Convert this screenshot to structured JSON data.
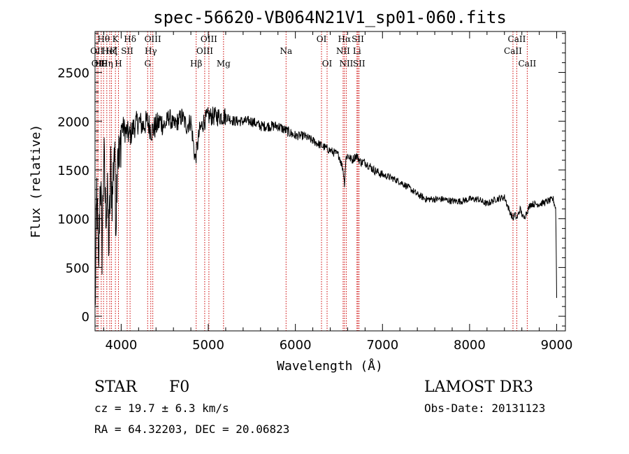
{
  "chart_data": {
    "type": "line",
    "title": "spec-56620-VB064N21V1_sp01-060.fits",
    "xlabel": "Wavelength (Å)",
    "ylabel": "Flux (relative)",
    "xlim": [
      3700,
      9100
    ],
    "ylim": [
      -150,
      2920
    ],
    "xticks": [
      4000,
      5000,
      6000,
      7000,
      8000,
      9000
    ],
    "yticks": [
      0,
      500,
      1000,
      1500,
      2000,
      2500
    ],
    "series": [
      {
        "name": "flux",
        "x": [
          3700,
          3720,
          3740,
          3760,
          3780,
          3800,
          3820,
          3840,
          3860,
          3880,
          3900,
          3920,
          3940,
          3960,
          3980,
          4000,
          4050,
          4100,
          4150,
          4200,
          4250,
          4300,
          4350,
          4400,
          4450,
          4500,
          4550,
          4600,
          4650,
          4700,
          4750,
          4800,
          4850,
          4900,
          4950,
          5000,
          5100,
          5200,
          5300,
          5400,
          5500,
          5600,
          5700,
          5800,
          5900,
          6000,
          6100,
          6200,
          6300,
          6400,
          6500,
          6550,
          6563,
          6580,
          6600,
          6650,
          6700,
          6750,
          6800,
          6900,
          7000,
          7100,
          7200,
          7300,
          7400,
          7500,
          7600,
          7700,
          7800,
          7900,
          8000,
          8100,
          8200,
          8300,
          8400,
          8450,
          8498,
          8520,
          8542,
          8580,
          8620,
          8662,
          8700,
          8800,
          8900,
          8960,
          8990,
          9000
        ],
        "y": [
          0,
          1300,
          400,
          1500,
          700,
          1650,
          1100,
          1250,
          700,
          1500,
          1200,
          1800,
          1000,
          1850,
          1500,
          1950,
          1900,
          1850,
          1950,
          2000,
          1950,
          2000,
          1900,
          1950,
          2000,
          1950,
          2050,
          1950,
          2000,
          2050,
          1950,
          2000,
          1600,
          1900,
          2000,
          2050,
          2050,
          2050,
          2000,
          2000,
          2000,
          1950,
          1950,
          1950,
          1900,
          1850,
          1850,
          1800,
          1750,
          1700,
          1650,
          1500,
          1350,
          1620,
          1650,
          1600,
          1650,
          1580,
          1580,
          1500,
          1450,
          1420,
          1380,
          1320,
          1250,
          1200,
          1200,
          1200,
          1180,
          1180,
          1200,
          1200,
          1150,
          1200,
          1220,
          1100,
          1000,
          1050,
          1000,
          1100,
          1000,
          1080,
          1150,
          1150,
          1180,
          1200,
          1100,
          200
        ]
      }
    ],
    "lines": [
      {
        "w": 3722,
        "label": "OII",
        "row": 1
      },
      {
        "w": 3735,
        "label": "OII",
        "row": 2
      },
      {
        "w": 3771,
        "label": "H9",
        "row": 2
      },
      {
        "w": 3798,
        "label": "Hθ",
        "row": 0
      },
      {
        "w": 3835,
        "label": "Hη",
        "row": 2
      },
      {
        "w": 3869,
        "label": "HeI",
        "row": 1
      },
      {
        "w": 3889,
        "label": "Hζ",
        "row": 1
      },
      {
        "w": 3934,
        "label": "K",
        "row": 0
      },
      {
        "w": 3969,
        "label": "H",
        "row": 2
      },
      {
        "w": 4069,
        "label": "SII",
        "row": 1
      },
      {
        "w": 4102,
        "label": "Hδ",
        "row": 0
      },
      {
        "w": 4304,
        "label": "G",
        "row": 2
      },
      {
        "w": 4340,
        "label": "Hγ",
        "row": 1
      },
      {
        "w": 4363,
        "label": "OIII",
        "row": 0
      },
      {
        "w": 4861,
        "label": "Hβ",
        "row": 2
      },
      {
        "w": 4959,
        "label": "OIII",
        "row": 1
      },
      {
        "w": 5007,
        "label": "OIII",
        "row": 0
      },
      {
        "w": 5175,
        "label": "Mg",
        "row": 2
      },
      {
        "w": 5893,
        "label": "Na",
        "row": 1
      },
      {
        "w": 6300,
        "label": "OI",
        "row": 0
      },
      {
        "w": 6364,
        "label": "OI",
        "row": 2
      },
      {
        "w": 6548,
        "label": "NII",
        "row": 1
      },
      {
        "w": 6563,
        "label": "Hα",
        "row": 0
      },
      {
        "w": 6584,
        "label": "NII",
        "row": 2
      },
      {
        "w": 6707,
        "label": "Li",
        "row": 1
      },
      {
        "w": 6717,
        "label": "SII",
        "row": 0
      },
      {
        "w": 6731,
        "label": "SII",
        "row": 2
      },
      {
        "w": 8498,
        "label": "CaII",
        "row": 1
      },
      {
        "w": 8542,
        "label": "CaII",
        "row": 0
      },
      {
        "w": 8662,
        "label": "CaII",
        "row": 2
      }
    ]
  },
  "info": {
    "class": "STAR",
    "subclass": "F0",
    "survey": "LAMOST DR3",
    "cz": "cz = 19.7 ± 6.3 km/s",
    "obsdate": "Obs-Date: 20131123",
    "coords": "RA =  64.32203, DEC =  20.06823"
  },
  "colors": {
    "line_marker": "#cc0000",
    "spectrum": "#000000"
  }
}
